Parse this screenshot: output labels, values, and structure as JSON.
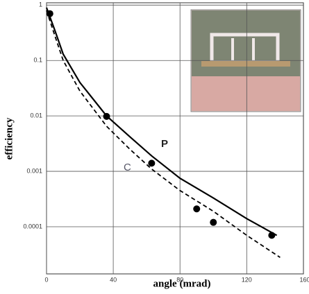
{
  "chart_data": {
    "type": "line",
    "xlabel": "angle (mrad)",
    "ylabel": "efficiency",
    "xlim": [
      0,
      154
    ],
    "xticks": [
      0,
      40,
      80,
      120,
      160
    ],
    "ylim": [
      1.41e-05,
      1.1
    ],
    "yticks": [
      1,
      0.1,
      0.01,
      0.001,
      0.0001
    ],
    "log_y": true,
    "grid": true,
    "series": [
      {
        "name": "P",
        "color": "#000000",
        "style": "solid",
        "x": [
          0,
          5,
          10,
          20,
          36,
          50,
          63,
          80,
          100,
          120,
          138
        ],
        "values": [
          0.9,
          0.35,
          0.13,
          0.04,
          0.01,
          0.0042,
          0.0019,
          0.00075,
          0.00033,
          0.00014,
          7e-05
        ]
      },
      {
        "name": "C",
        "color": "#000000",
        "style": "dashed",
        "x": [
          0,
          5,
          10,
          20,
          36,
          50,
          63,
          80,
          100,
          120,
          140
        ],
        "values": [
          0.8,
          0.28,
          0.1,
          0.028,
          0.0065,
          0.0025,
          0.0011,
          0.00045,
          0.00019,
          7e-05,
          2.8e-05
        ]
      },
      {
        "color": "#000000",
        "style": "markers",
        "x": [
          2,
          36,
          63,
          90,
          100,
          135
        ],
        "values": [
          0.7,
          0.0098,
          0.0014,
          0.00021,
          0.00012,
          7e-05
        ]
      }
    ]
  }
}
